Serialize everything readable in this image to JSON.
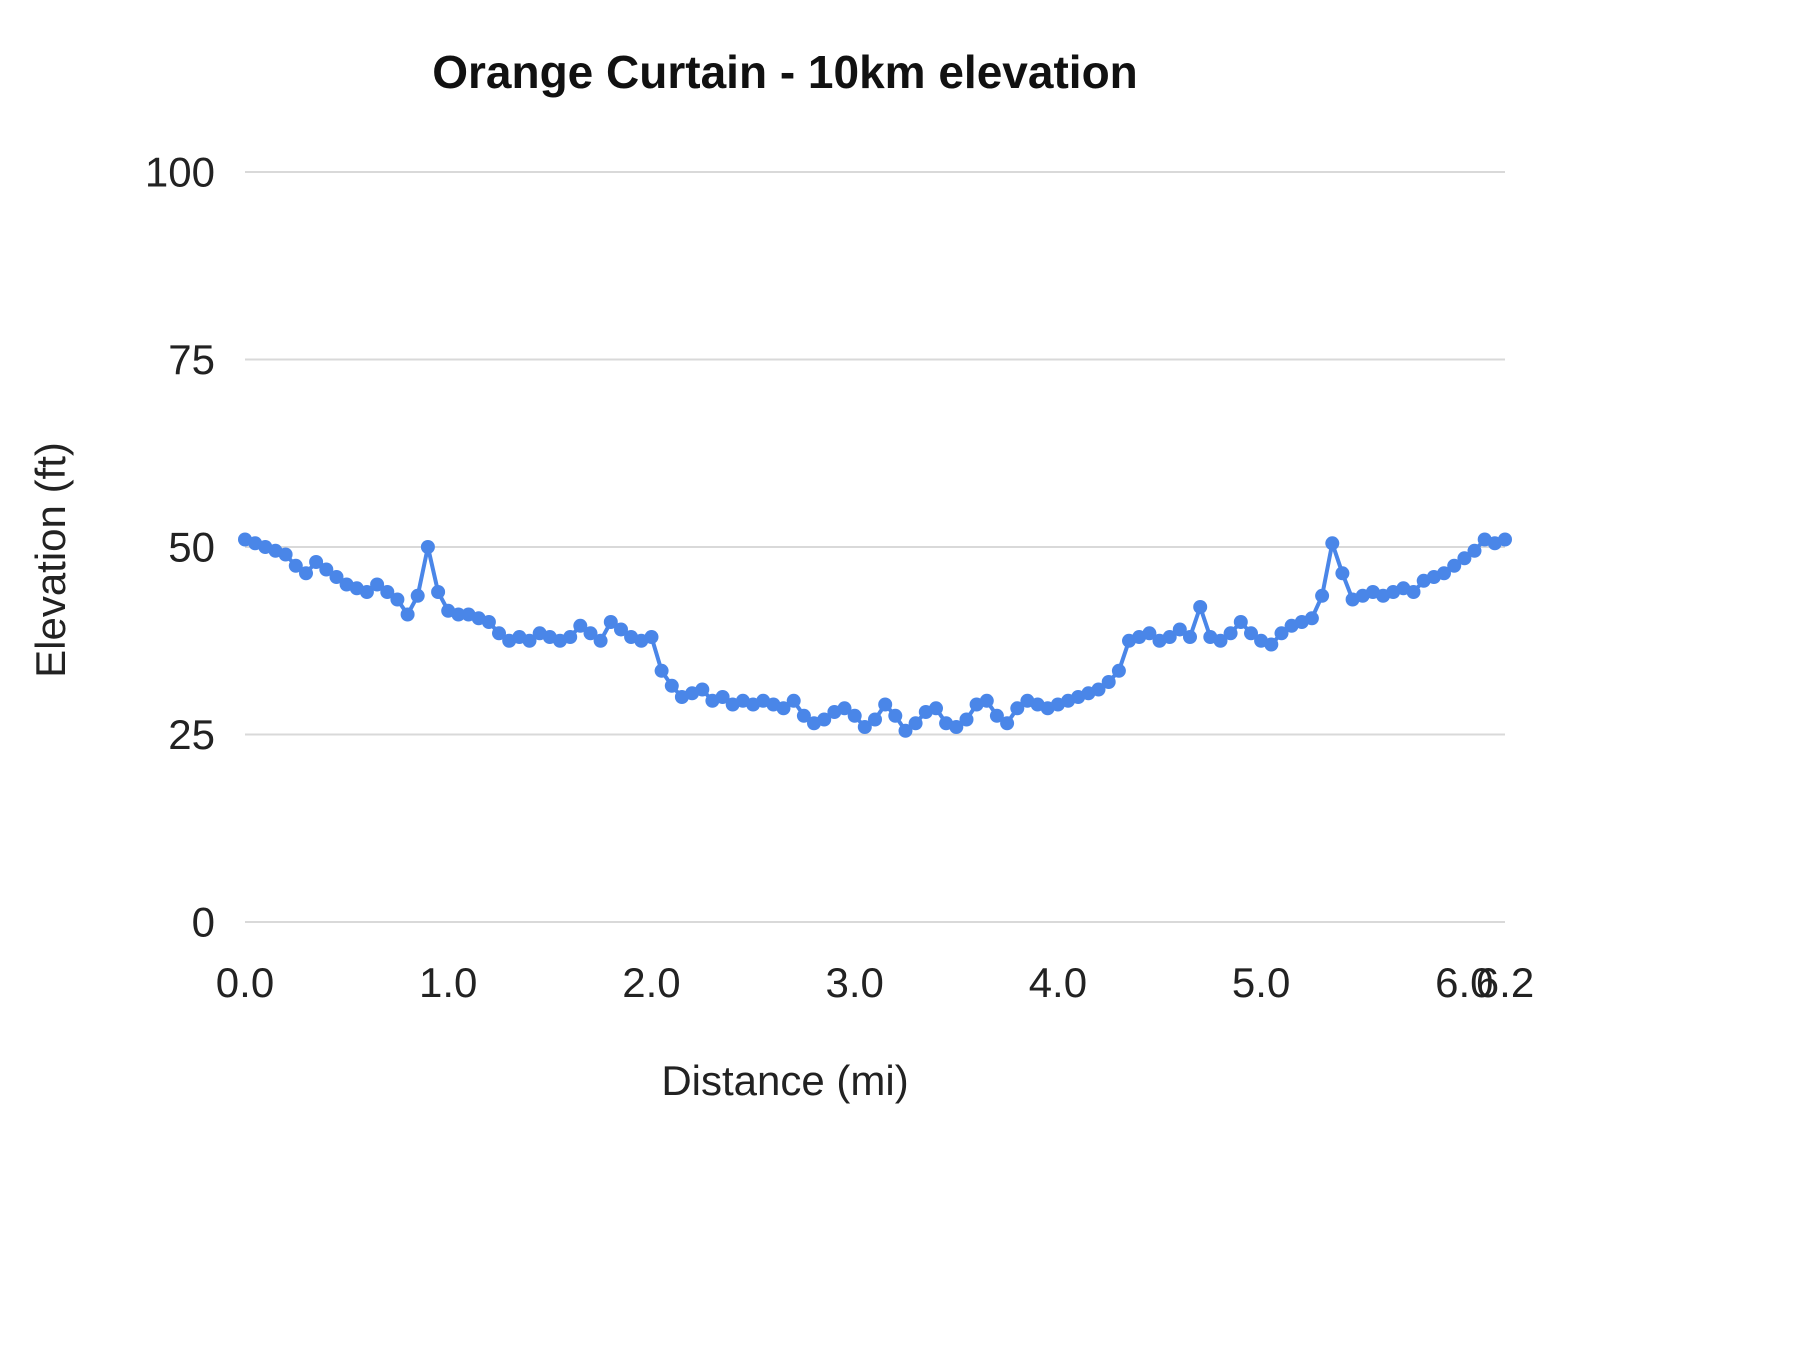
{
  "chart_data": {
    "type": "line",
    "title": "Orange Curtain - 10km elevation",
    "xlabel": "Distance (mi)",
    "ylabel": "Elevation (ft)",
    "xlim": [
      0,
      6.2
    ],
    "ylim": [
      0,
      100
    ],
    "grid": "horizontal",
    "legend": "none",
    "x_ticks": {
      "values": [
        0,
        1,
        2,
        3,
        4,
        5,
        6,
        6.2
      ],
      "labels": [
        "0.0",
        "1.0",
        "2.0",
        "3.0",
        "4.0",
        "5.0",
        "6.0",
        "6.2"
      ]
    },
    "y_ticks": {
      "values": [
        0,
        25,
        50,
        75,
        100
      ],
      "labels": [
        "0",
        "25",
        "50",
        "75",
        "100"
      ]
    },
    "series": [
      {
        "name": "elevation",
        "color": "#4a86e8",
        "marker": "circle",
        "x": [
          0.0,
          0.05,
          0.1,
          0.15,
          0.2,
          0.25,
          0.3,
          0.35,
          0.4,
          0.45,
          0.5,
          0.55,
          0.6,
          0.65,
          0.7,
          0.75,
          0.8,
          0.85,
          0.9,
          0.95,
          1.0,
          1.05,
          1.1,
          1.15,
          1.2,
          1.25,
          1.3,
          1.35,
          1.4,
          1.45,
          1.5,
          1.55,
          1.6,
          1.65,
          1.7,
          1.75,
          1.8,
          1.85,
          1.9,
          1.95,
          2.0,
          2.05,
          2.1,
          2.15,
          2.2,
          2.25,
          2.3,
          2.35,
          2.4,
          2.45,
          2.5,
          2.55,
          2.6,
          2.65,
          2.7,
          2.75,
          2.8,
          2.85,
          2.9,
          2.95,
          3.0,
          3.05,
          3.1,
          3.15,
          3.2,
          3.25,
          3.3,
          3.35,
          3.4,
          3.45,
          3.5,
          3.55,
          3.6,
          3.65,
          3.7,
          3.75,
          3.8,
          3.85,
          3.9,
          3.95,
          4.0,
          4.05,
          4.1,
          4.15,
          4.2,
          4.25,
          4.3,
          4.35,
          4.4,
          4.45,
          4.5,
          4.55,
          4.6,
          4.65,
          4.7,
          4.75,
          4.8,
          4.85,
          4.9,
          4.95,
          5.0,
          5.05,
          5.1,
          5.15,
          5.2,
          5.25,
          5.3,
          5.35,
          5.4,
          5.45,
          5.5,
          5.55,
          5.6,
          5.65,
          5.7,
          5.75,
          5.8,
          5.85,
          5.9,
          5.95,
          6.0,
          6.05,
          6.1,
          6.15,
          6.2
        ],
        "y": [
          51,
          50.5,
          50,
          49.5,
          49,
          47.5,
          46.5,
          48,
          47,
          46,
          45,
          44.5,
          44,
          45,
          44,
          43,
          41,
          43.5,
          50,
          44,
          41.5,
          41,
          41,
          40.5,
          40,
          38.5,
          37.5,
          38,
          37.5,
          38.5,
          38,
          37.5,
          38,
          39.5,
          38.5,
          37.5,
          40,
          39,
          38,
          37.5,
          38,
          33.5,
          31.5,
          30,
          30.5,
          31,
          29.5,
          30,
          29,
          29.5,
          29,
          29.5,
          29,
          28.5,
          29.5,
          27.5,
          26.5,
          27,
          28,
          28.5,
          27.5,
          26,
          27,
          29,
          27.5,
          25.5,
          26.5,
          28,
          28.5,
          26.5,
          26,
          27,
          29,
          29.5,
          27.5,
          26.5,
          28.5,
          29.5,
          29,
          28.5,
          29,
          29.5,
          30,
          30.5,
          31,
          32,
          33.5,
          37.5,
          38,
          38.5,
          37.5,
          38,
          39,
          38,
          42,
          38,
          37.5,
          38.5,
          40,
          38.5,
          37.5,
          37,
          38.5,
          39.5,
          40,
          40.5,
          43.5,
          50.5,
          46.5,
          43,
          43.5,
          44,
          43.5,
          44,
          44.5,
          44,
          45.5,
          46,
          46.5,
          47.5,
          48.5,
          49.5,
          51,
          50.5,
          51
        ]
      }
    ]
  },
  "style": {
    "line_color": "#4a86e8",
    "marker_color": "#4a86e8",
    "grid_color": "#d9d9d9",
    "text_color": "#222222",
    "title_color": "#111111",
    "background": "#ffffff"
  }
}
